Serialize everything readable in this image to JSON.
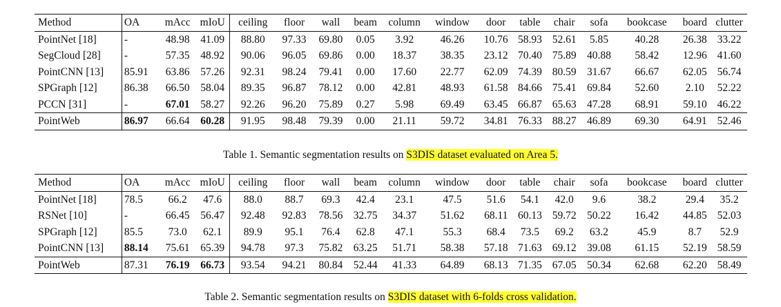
{
  "headers": [
    "Method",
    "OA",
    "mAcc",
    "mIoU",
    "ceiling",
    "floor",
    "wall",
    "beam",
    "column",
    "window",
    "door",
    "table",
    "chair",
    "sofa",
    "bookcase",
    "board",
    "clutter"
  ],
  "table1": {
    "rows": [
      {
        "method": "PointNet [18]",
        "values": [
          "-",
          "48.98",
          "41.09",
          "88.80",
          "97.33",
          "69.80",
          "0.05",
          "3.92",
          "46.26",
          "10.76",
          "58.93",
          "52.61",
          "5.85",
          "40.28",
          "26.38",
          "33.22"
        ],
        "bold": []
      },
      {
        "method": "SegCloud [28]",
        "values": [
          "-",
          "57.35",
          "48.92",
          "90.06",
          "96.05",
          "69.86",
          "0.00",
          "18.37",
          "38.35",
          "23.12",
          "70.40",
          "75.89",
          "40.88",
          "58.42",
          "12.96",
          "41.60"
        ],
        "bold": []
      },
      {
        "method": "PointCNN [13]",
        "values": [
          "85.91",
          "63.86",
          "57.26",
          "92.31",
          "98.24",
          "79.41",
          "0.00",
          "17.60",
          "22.77",
          "62.09",
          "74.39",
          "80.59",
          "31.67",
          "66.67",
          "62.05",
          "56.74"
        ],
        "bold": []
      },
      {
        "method": "SPGraph [12]",
        "values": [
          "86.38",
          "66.50",
          "58.04",
          "89.35",
          "96.87",
          "78.12",
          "0.00",
          "42.81",
          "48.93",
          "61.58",
          "84.66",
          "75.41",
          "69.84",
          "52.60",
          "2.10",
          "52.22"
        ],
        "bold": []
      },
      {
        "method": "PCCN [31]",
        "values": [
          "-",
          "67.01",
          "58.27",
          "92.26",
          "96.20",
          "75.89",
          "0.27",
          "5.98",
          "69.49",
          "63.45",
          "66.87",
          "65.63",
          "47.28",
          "68.91",
          "59.10",
          "46.22"
        ],
        "bold": [
          1
        ]
      },
      {
        "method": "PointWeb",
        "values": [
          "86.97",
          "66.64",
          "60.28",
          "91.95",
          "98.48",
          "79.39",
          "0.00",
          "21.11",
          "59.72",
          "34.81",
          "76.33",
          "88.27",
          "46.89",
          "69.30",
          "64.91",
          "52.46"
        ],
        "bold": [
          0,
          2
        ]
      }
    ],
    "caption_prefix": "Table 1. Semantic segmentation results on ",
    "caption_highlight": "S3DIS dataset evaluated on Area 5."
  },
  "table2": {
    "rows": [
      {
        "method": "PointNet [18]",
        "values": [
          "78.5",
          "66.2",
          "47.6",
          "88.0",
          "88.7",
          "69.3",
          "42.4",
          "23.1",
          "47.5",
          "51.6",
          "54.1",
          "42.0",
          "9.6",
          "38.2",
          "29.4",
          "35.2"
        ],
        "bold": []
      },
      {
        "method": "RSNet [10]",
        "values": [
          "-",
          "66.45",
          "56.47",
          "92.48",
          "92.83",
          "78.56",
          "32.75",
          "34.37",
          "51.62",
          "68.11",
          "60.13",
          "59.72",
          "50.22",
          "16.42",
          "44.85",
          "52.03"
        ],
        "bold": []
      },
      {
        "method": "SPGraph [12]",
        "values": [
          "85.5",
          "73.0",
          "62.1",
          "89.9",
          "95.1",
          "76.4",
          "62.8",
          "47.1",
          "55.3",
          "68.4",
          "73.5",
          "69.2",
          "63.2",
          "45.9",
          "8.7",
          "52.9"
        ],
        "bold": []
      },
      {
        "method": "PointCNN [13]",
        "values": [
          "88.14",
          "75.61",
          "65.39",
          "94.78",
          "97.3",
          "75.82",
          "63.25",
          "51.71",
          "58.38",
          "57.18",
          "71.63",
          "69.12",
          "39.08",
          "61.15",
          "52.19",
          "58.59"
        ],
        "bold": [
          0
        ]
      },
      {
        "method": "PointWeb",
        "values": [
          "87.31",
          "76.19",
          "66.73",
          "93.54",
          "94.21",
          "80.84",
          "52.44",
          "41.33",
          "64.89",
          "68.13",
          "71.35",
          "67.05",
          "50.34",
          "62.68",
          "62.20",
          "58.49"
        ],
        "bold": [
          1,
          2
        ]
      }
    ],
    "caption_prefix": "Table 2. Semantic segmentation results on ",
    "caption_highlight": "S3DIS dataset with 6-folds cross validation."
  },
  "colors": {
    "highlight": "#ffff33",
    "text": "#111111"
  }
}
